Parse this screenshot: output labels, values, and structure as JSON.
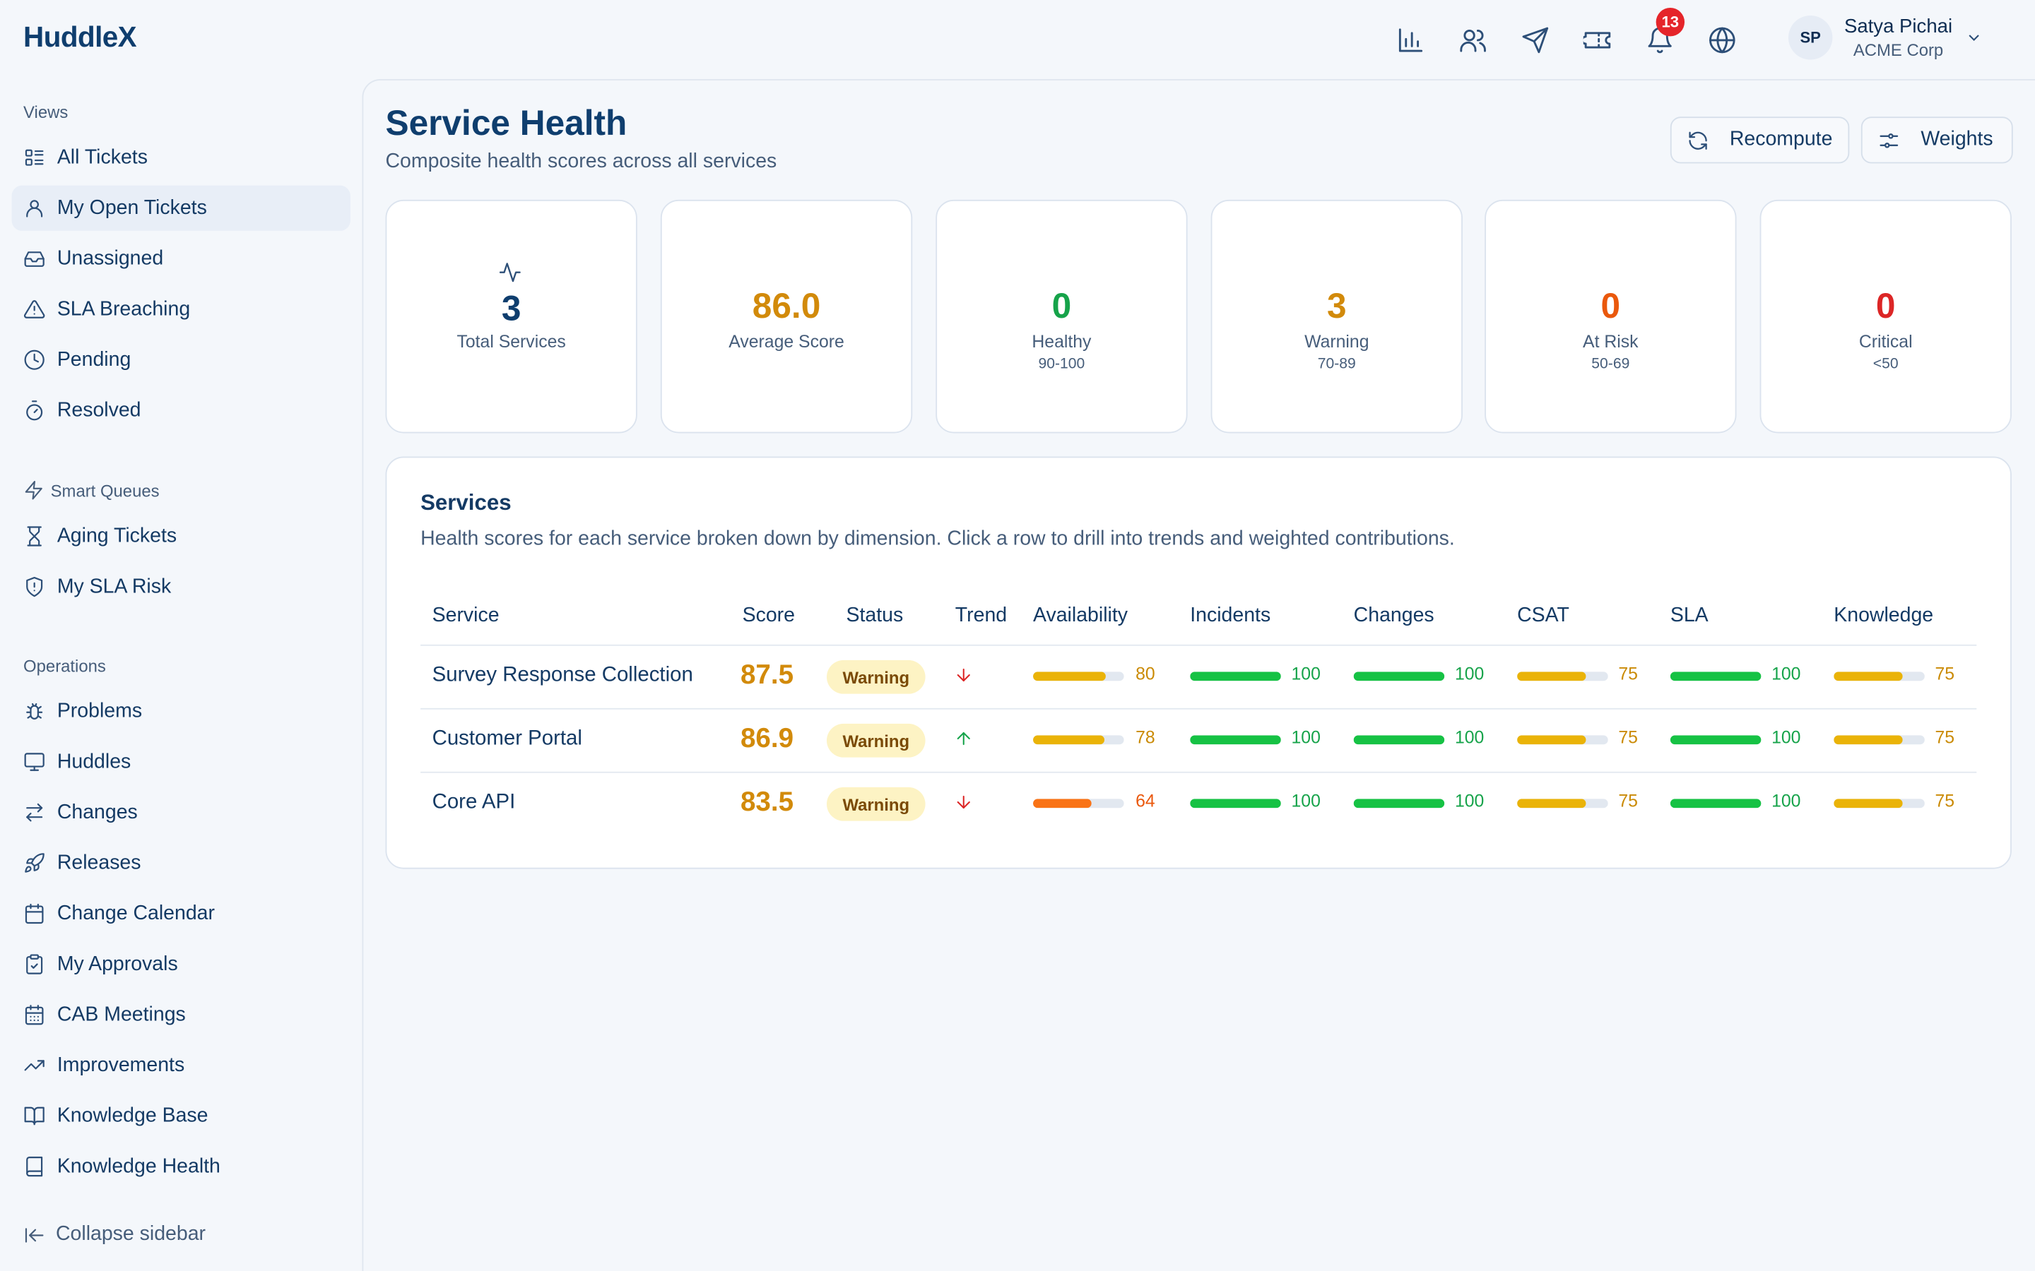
{
  "app": {
    "logo": "HuddleX"
  },
  "header": {
    "icons": [
      "bar-chart-icon",
      "users-icon",
      "send-icon",
      "ticket-icon",
      "bell-icon",
      "globe-icon"
    ],
    "notification_count": "13",
    "user": {
      "initials": "SP",
      "name": "Satya Pichai",
      "org": "ACME Corp"
    }
  },
  "sidebar": {
    "views_title": "Views",
    "views": [
      {
        "label": "All Tickets",
        "icon": "list-icon"
      },
      {
        "label": "My Open Tickets",
        "icon": "user-icon",
        "active": true
      },
      {
        "label": "Unassigned",
        "icon": "inbox-icon"
      },
      {
        "label": "SLA Breaching",
        "icon": "alert-triangle-icon"
      },
      {
        "label": "Pending",
        "icon": "clock-icon"
      },
      {
        "label": "Resolved",
        "icon": "timer-icon"
      }
    ],
    "smart_title": "Smart Queues",
    "smart": [
      {
        "label": "Aging Tickets",
        "icon": "hourglass-icon"
      },
      {
        "label": "My SLA Risk",
        "icon": "shield-alert-icon"
      }
    ],
    "ops_title": "Operations",
    "ops": [
      {
        "label": "Problems",
        "icon": "bug-icon"
      },
      {
        "label": "Huddles",
        "icon": "monitor-icon"
      },
      {
        "label": "Changes",
        "icon": "swap-icon"
      },
      {
        "label": "Releases",
        "icon": "rocket-icon"
      },
      {
        "label": "Change Calendar",
        "icon": "calendar-icon"
      },
      {
        "label": "My Approvals",
        "icon": "clipboard-check-icon"
      },
      {
        "label": "CAB Meetings",
        "icon": "calendar-grid-icon"
      },
      {
        "label": "Improvements",
        "icon": "trending-up-icon"
      },
      {
        "label": "Knowledge Base",
        "icon": "book-open-icon"
      },
      {
        "label": "Knowledge Health",
        "icon": "book-icon"
      }
    ],
    "collapse_label": "Collapse sidebar"
  },
  "page": {
    "title": "Service Health",
    "subtitle": "Composite health scores across all services",
    "recompute_label": "Recompute",
    "weights_label": "Weights"
  },
  "stats": [
    {
      "value": "3",
      "label": "Total Services",
      "range": "",
      "color": "#0f3e6e"
    },
    {
      "value": "86.0",
      "label": "Average Score",
      "range": "",
      "color": "#d28a0a"
    },
    {
      "value": "0",
      "label": "Healthy",
      "range": "90-100",
      "color": "#16a34a"
    },
    {
      "value": "3",
      "label": "Warning",
      "range": "70-89",
      "color": "#d28a0a"
    },
    {
      "value": "0",
      "label": "At Risk",
      "range": "50-69",
      "color": "#ea580c"
    },
    {
      "value": "0",
      "label": "Critical",
      "range": "<50",
      "color": "#dc2626"
    }
  ],
  "services": {
    "title": "Services",
    "description": "Health scores for each service broken down by dimension. Click a row to drill into trends and weighted contributions.",
    "columns": [
      "Service",
      "Score",
      "Status",
      "Trend",
      "Availability",
      "Incidents",
      "Changes",
      "CSAT",
      "SLA",
      "Knowledge"
    ],
    "rows": [
      {
        "name": "Survey Response Collection",
        "score": "87.5",
        "status": "Warning",
        "trend": "down",
        "dims": [
          80,
          100,
          100,
          75,
          100,
          75
        ]
      },
      {
        "name": "Customer Portal",
        "score": "86.9",
        "status": "Warning",
        "trend": "up",
        "dims": [
          78,
          100,
          100,
          75,
          100,
          75
        ]
      },
      {
        "name": "Core API",
        "score": "83.5",
        "status": "Warning",
        "trend": "down",
        "dims": [
          64,
          100,
          100,
          75,
          100,
          75
        ]
      }
    ]
  },
  "colors": {
    "good": "#16c244",
    "good_text": "#16a34a",
    "warn": "#eab308",
    "warn_text": "#ca8a04",
    "risk": "#f97316",
    "risk_text": "#ea580c",
    "trend_up": "#16a34a",
    "trend_down": "#dc2626"
  }
}
